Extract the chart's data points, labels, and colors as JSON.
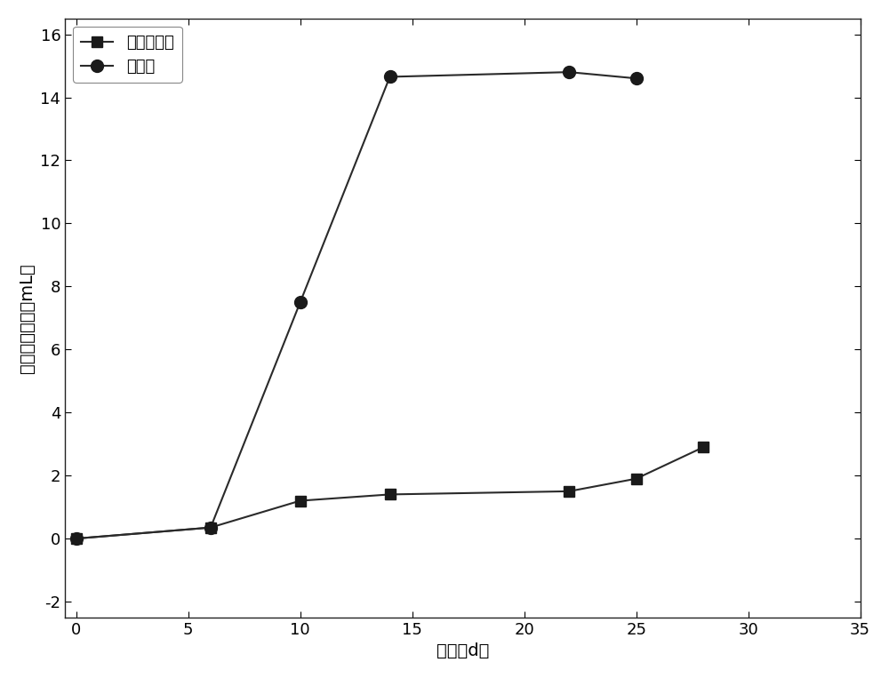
{
  "series1_name": "空白对照组",
  "series2_name": "磁铁矿",
  "series1_x": [
    0,
    6,
    10,
    14,
    22,
    25,
    28
  ],
  "series1_y": [
    0,
    0.35,
    1.2,
    1.4,
    1.5,
    1.9,
    2.9
  ],
  "series2_x": [
    0,
    6,
    10,
    14,
    22,
    25
  ],
  "series2_y": [
    0,
    0.35,
    7.5,
    14.65,
    14.8,
    14.6
  ],
  "line_color": "#2a2a2a",
  "marker_color": "#1a1a1a",
  "xlabel": "时间（d）",
  "ylabel": "累积产甲烷量（mL）",
  "xlim": [
    -0.5,
    35
  ],
  "ylim": [
    -2.5,
    16.5
  ],
  "xticks": [
    0,
    5,
    10,
    15,
    20,
    25,
    30,
    35
  ],
  "yticks": [
    -2,
    0,
    2,
    4,
    6,
    8,
    10,
    12,
    14,
    16
  ],
  "bg_color": "#ffffff",
  "label_fontsize": 14,
  "tick_fontsize": 13,
  "legend_fontsize": 13
}
